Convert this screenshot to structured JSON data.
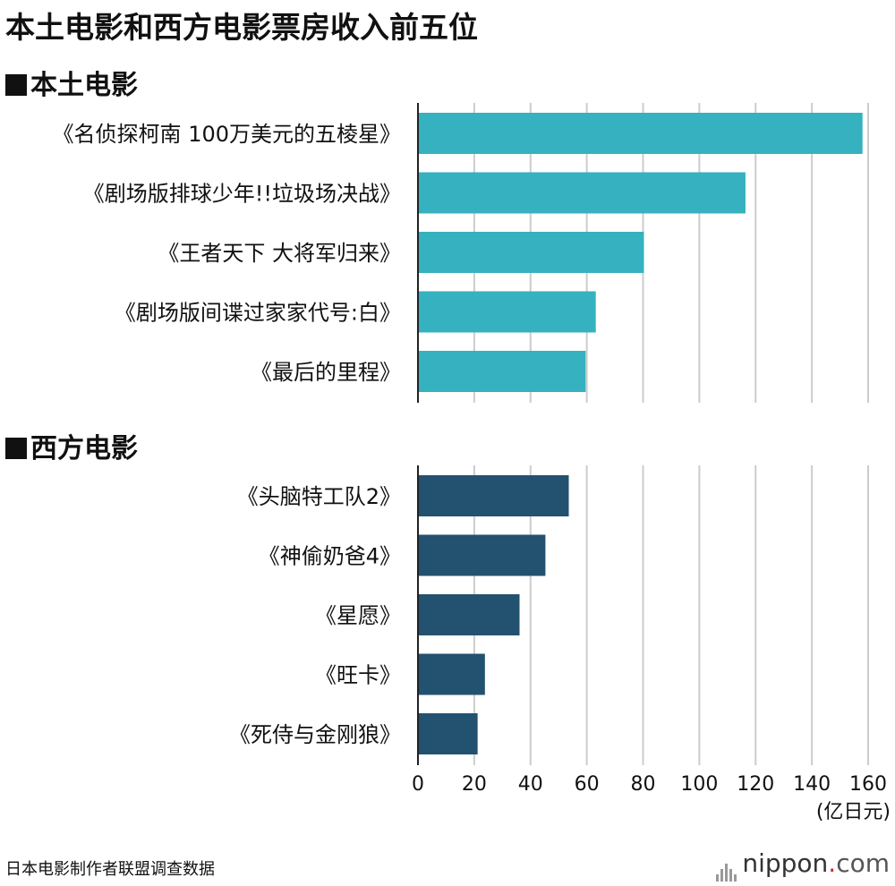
{
  "title": "本土电影和西方电影票房收入前五位",
  "source": "日本电影制作者联盟调查数据",
  "brand": {
    "name": "nippon",
    "dot": ".",
    "suffix": "com"
  },
  "chart_data": [
    {
      "type": "bar",
      "orientation": "horizontal",
      "title": "■本土电影",
      "categories": [
        "《名侦探柯南 100万美元的五棱星》",
        "《剧场版排球少年!!垃圾场决战》",
        "《王者天下 大将军归来》",
        "《剧场版间谍过家家代号:白》",
        "《最后的里程》"
      ],
      "values": [
        158,
        116.4,
        80.3,
        63.2,
        59.6
      ],
      "color": "#35b1bf",
      "xlim": [
        0,
        160
      ],
      "xticks": [
        0,
        20,
        40,
        60,
        80,
        100,
        120,
        140,
        160
      ],
      "xlabel": "(亿日元)",
      "grid": true
    },
    {
      "type": "bar",
      "orientation": "horizontal",
      "title": "■西方电影",
      "categories": [
        "《头脑特工队2》",
        "《神偷奶爸4》",
        "《星愿》",
        "《旺卡》",
        "《死侍与金刚狼》"
      ],
      "values": [
        53.6,
        45.3,
        36.1,
        23.8,
        21.2
      ],
      "color": "#235170",
      "xlim": [
        0,
        160
      ],
      "xticks": [
        0,
        20,
        40,
        60,
        80,
        100,
        120,
        140,
        160
      ],
      "xlabel": "(亿日元)",
      "grid": true
    }
  ]
}
